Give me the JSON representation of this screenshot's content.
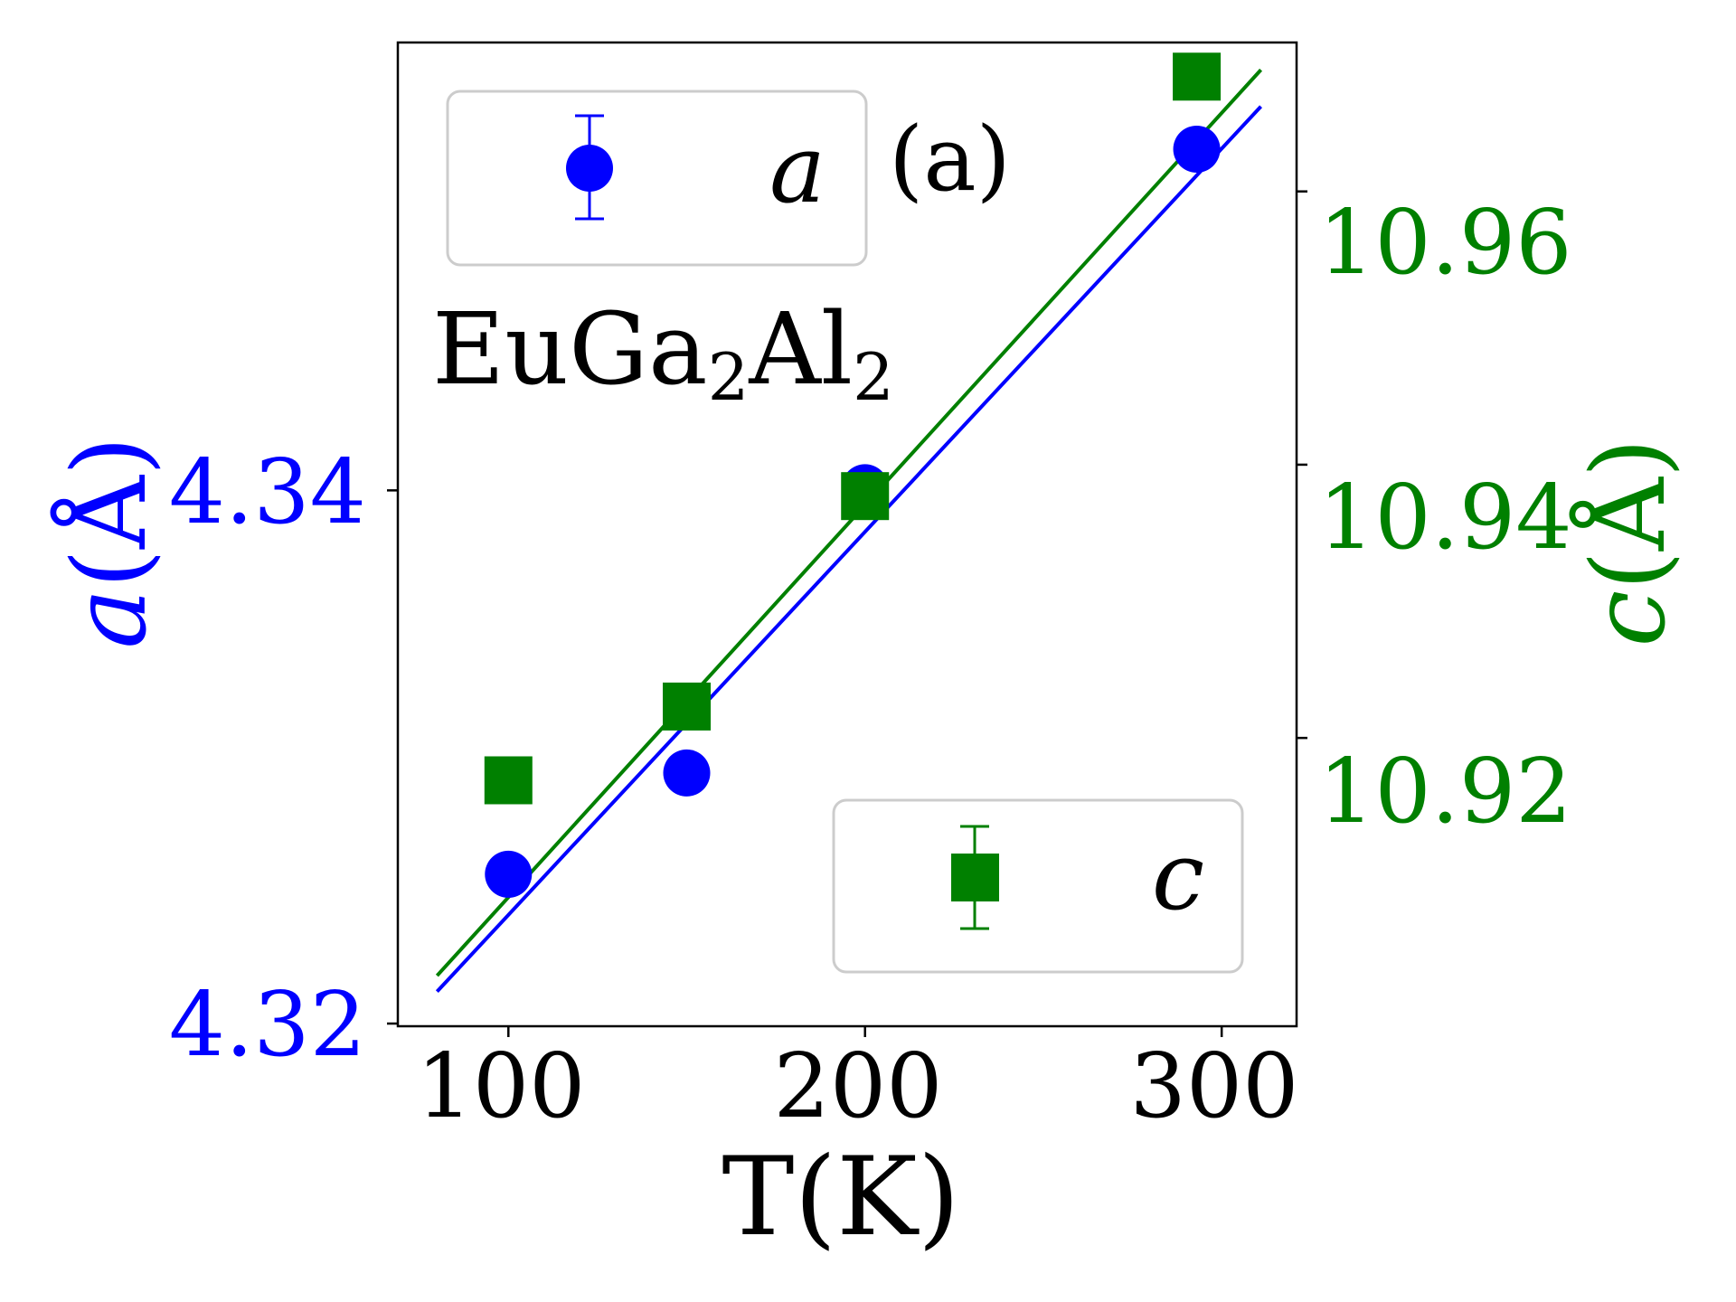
{
  "chart_data": {
    "type": "scatter",
    "panel_label": "(a)",
    "compound": {
      "base1": "EuGa",
      "sub1": "2",
      "base2": "Al",
      "sub2": "2"
    },
    "xlabel": "T(K)",
    "xlim": [
      69,
      321
    ],
    "xticks": [
      100,
      200,
      300
    ],
    "xtick_labels": [
      "100",
      "200",
      "300"
    ],
    "left_axis": {
      "label_var": "a",
      "label_unit": "(Å)",
      "color": "#0000ff",
      "ylim": [
        4.3199,
        4.3568
      ],
      "ticks": [
        4.32,
        4.34
      ],
      "tick_labels": [
        "4.32",
        "4.34"
      ]
    },
    "right_axis": {
      "label_var": "c",
      "label_unit": "(Å)",
      "color": "#008000",
      "ylim": [
        10.8989,
        10.9709
      ],
      "ticks": [
        10.92,
        10.94,
        10.96
      ],
      "tick_labels": [
        "10.92",
        "10.94",
        "10.96"
      ]
    },
    "series": [
      {
        "name": "a",
        "axis": "left",
        "marker": "circle",
        "color": "#0000ff",
        "x": [
          100,
          150,
          200,
          293
        ],
        "y": [
          4.3256,
          4.3294,
          4.3401,
          4.3528
        ],
        "fit": {
          "x": [
            80,
            311
          ],
          "y": [
            4.3212,
            4.3544
          ]
        }
      },
      {
        "name": "c",
        "axis": "right",
        "marker": "square",
        "color": "#008000",
        "x": [
          100,
          150,
          200,
          293
        ],
        "y": [
          10.9169,
          10.9223,
          10.9377,
          10.9684
        ],
        "fit": {
          "x": [
            80,
            311
          ],
          "y": [
            10.9026,
            10.9689
          ]
        }
      }
    ],
    "legends": [
      {
        "series": "a",
        "placement": "top-left",
        "label": "a"
      },
      {
        "series": "c",
        "placement": "lower-right",
        "label": "c"
      }
    ]
  }
}
